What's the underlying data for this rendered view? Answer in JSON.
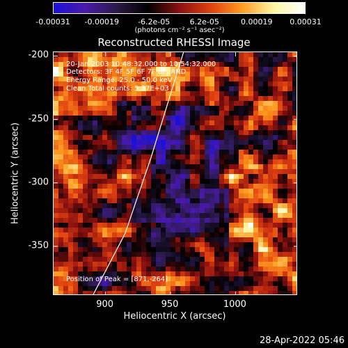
{
  "colorbar": {
    "ticks": [
      "-0.00031",
      "-0.00019",
      "-6.2e-05",
      "6.2e-05",
      "0.00019",
      "0.00031"
    ],
    "tick_values": [
      -0.00031,
      -0.00019,
      -6.2e-05,
      6.2e-05,
      0.00019,
      0.00031
    ],
    "label": "(photons cm⁻² s⁻¹ asec⁻²)",
    "colors": [
      "#1a10d8",
      "#4a1aa8",
      "#2a1a4a",
      "#000000",
      "#8a1010",
      "#e04010",
      "#ff9a20",
      "#fff6a0",
      "#ffffff"
    ]
  },
  "chart_data": {
    "type": "heatmap",
    "title": "Reconstructed RHESSI Image",
    "xlabel": "Heliocentric X (arcsec)",
    "ylabel": "Heliocentric Y (arcsec)",
    "xlim": [
      860,
      1048
    ],
    "ylim": [
      -389,
      -197
    ],
    "xticks": [
      900,
      950,
      1000
    ],
    "yticks": [
      -200,
      -250,
      -300,
      -350
    ],
    "limb_curve": [
      [
        890,
        -389
      ],
      [
        915,
        -340
      ],
      [
        935,
        -280
      ],
      [
        950,
        -230
      ],
      [
        960,
        -197
      ]
    ]
  },
  "info": {
    "line1": "20-Jan-2003 10:48:32.000 to 10:54:32.000",
    "line2": "Detectors: 3F 4F 5F 6F 7F 8F, AND",
    "line3": "Energy Range: 25.0 - 50.0 keV",
    "line4": "Clean     Total counts: 5.37E+03"
  },
  "peak_label": "Position of Peak = [871,-264]",
  "date_stamp": "28-Apr-2022 05:46"
}
